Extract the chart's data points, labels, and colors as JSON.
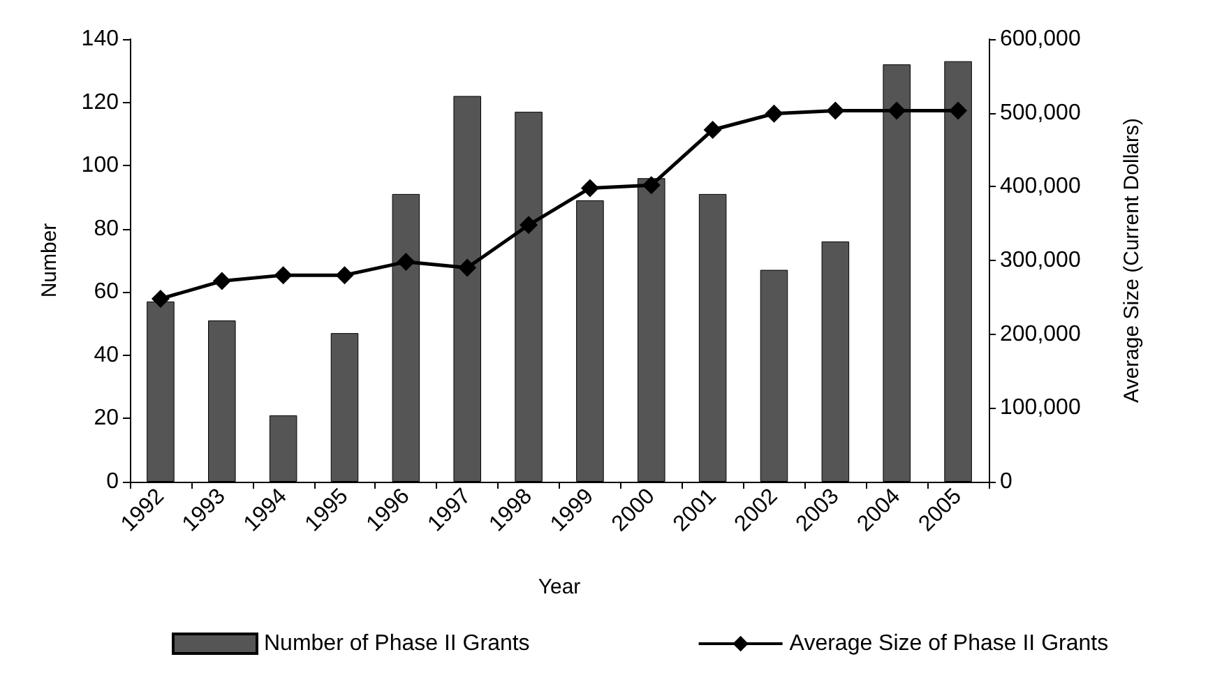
{
  "chart_data": {
    "type": "bar",
    "xlabel": "Year",
    "ylabel": "Number",
    "y2label": "Average Size (Current Dollars)",
    "categories": [
      "1992",
      "1993",
      "1994",
      "1995",
      "1996",
      "1997",
      "1998",
      "1999",
      "2000",
      "2001",
      "2002",
      "2003",
      "2004",
      "2005"
    ],
    "series": [
      {
        "name": "Number of Phase II Grants",
        "color": "#555555",
        "values": [
          57,
          51,
          21,
          47,
          91,
          122,
          117,
          89,
          96,
          91,
          67,
          76,
          132,
          133
        ]
      },
      {
        "name": "Average Size of Phase II Grants",
        "type": "line",
        "axis": "y2",
        "color": "#000000",
        "marker": "diamond",
        "values": [
          248000,
          272000,
          280000,
          280000,
          298000,
          290000,
          348000,
          398000,
          402000,
          477000,
          499000,
          503000,
          503000,
          503000
        ]
      }
    ],
    "ylim": [
      0,
      140
    ],
    "yticks": [
      0,
      20,
      40,
      60,
      80,
      100,
      120,
      140
    ],
    "y2lim": [
      0,
      600000
    ],
    "y2ticks": [
      0,
      {
        "value": 100000,
        "label": "100,000"
      },
      {
        "value": 200000,
        "label": "200,000"
      },
      {
        "value": 300000,
        "label": "300,000"
      },
      {
        "value": 400000,
        "label": "400,000"
      },
      {
        "value": 500000,
        "label": "500,000"
      },
      {
        "value": 600000,
        "label": "600,000"
      }
    ],
    "grid": false,
    "legend": "bottom"
  }
}
